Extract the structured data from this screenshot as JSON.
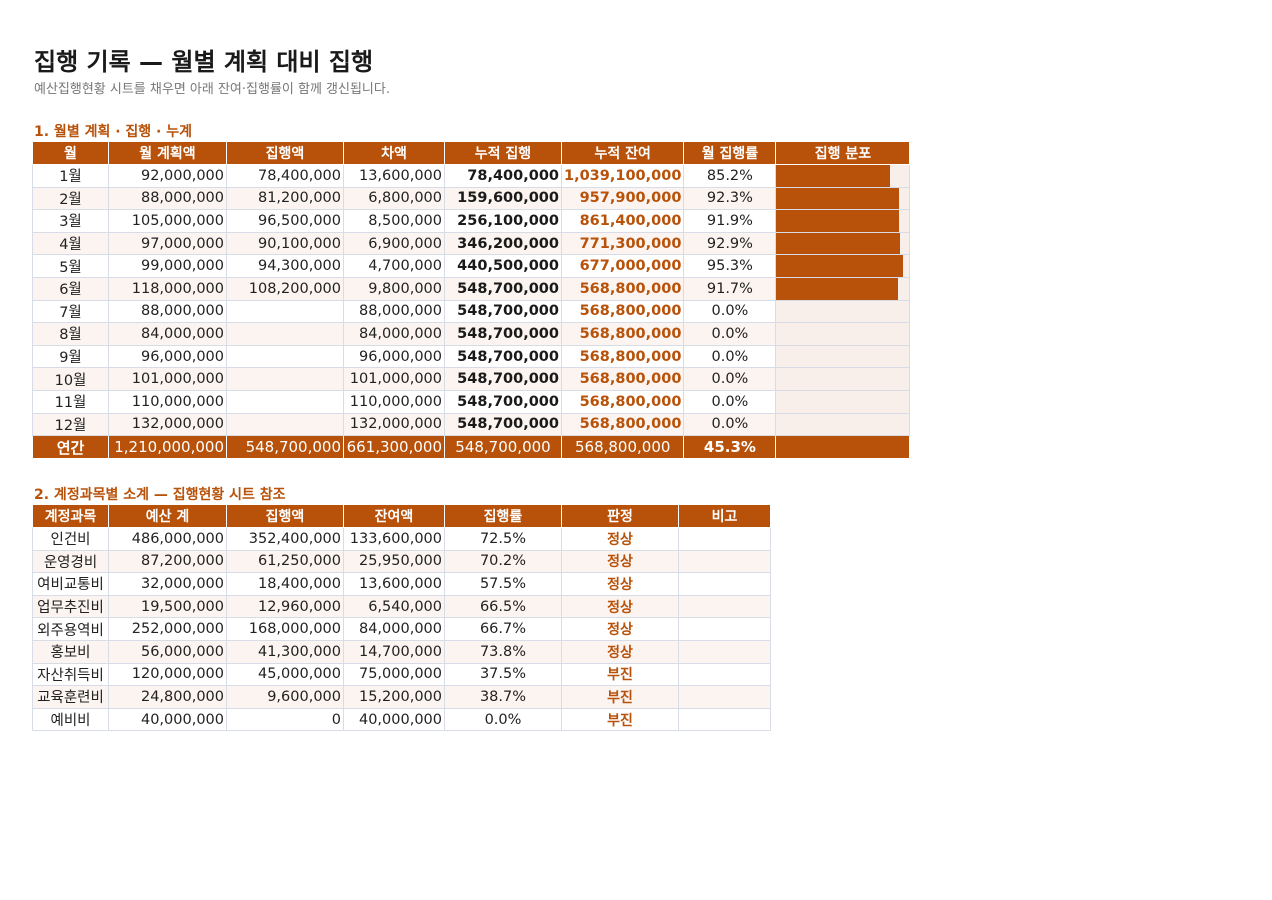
{
  "title": "집행 기록 — 월별 계획 대비 집행",
  "subtitle": "예산집행현황 시트를 채우면 아래 잔여·집행률이 함께 갱신됩니다.",
  "colors": {
    "accent": "#b8520a",
    "zebra": "#fbf4f0",
    "border": "#d8dce6"
  },
  "section1": {
    "title": "1. 월별 계획 · 집행 · 누계",
    "headers": [
      "월",
      "월 계획액",
      "집행액",
      "차액",
      "누적 집행",
      "누적 잔여",
      "월 집행률",
      "집행 분포"
    ],
    "rows": [
      {
        "month": "1월",
        "plan": "92,000,000",
        "exec": "78,400,000",
        "diff": "13,600,000",
        "cum_exec": "78,400,000",
        "cum_rem": "1,039,100,000",
        "rate": "85.2%",
        "rate_value": 0.852
      },
      {
        "month": "2월",
        "plan": "88,000,000",
        "exec": "81,200,000",
        "diff": "6,800,000",
        "cum_exec": "159,600,000",
        "cum_rem": "957,900,000",
        "rate": "92.3%",
        "rate_value": 0.923
      },
      {
        "month": "3월",
        "plan": "105,000,000",
        "exec": "96,500,000",
        "diff": "8,500,000",
        "cum_exec": "256,100,000",
        "cum_rem": "861,400,000",
        "rate": "91.9%",
        "rate_value": 0.919
      },
      {
        "month": "4월",
        "plan": "97,000,000",
        "exec": "90,100,000",
        "diff": "6,900,000",
        "cum_exec": "346,200,000",
        "cum_rem": "771,300,000",
        "rate": "92.9%",
        "rate_value": 0.929
      },
      {
        "month": "5월",
        "plan": "99,000,000",
        "exec": "94,300,000",
        "diff": "4,700,000",
        "cum_exec": "440,500,000",
        "cum_rem": "677,000,000",
        "rate": "95.3%",
        "rate_value": 0.953
      },
      {
        "month": "6월",
        "plan": "118,000,000",
        "exec": "108,200,000",
        "diff": "9,800,000",
        "cum_exec": "548,700,000",
        "cum_rem": "568,800,000",
        "rate": "91.7%",
        "rate_value": 0.917
      },
      {
        "month": "7월",
        "plan": "88,000,000",
        "exec": "",
        "diff": "88,000,000",
        "cum_exec": "548,700,000",
        "cum_rem": "568,800,000",
        "rate": "0.0%",
        "rate_value": 0
      },
      {
        "month": "8월",
        "plan": "84,000,000",
        "exec": "",
        "diff": "84,000,000",
        "cum_exec": "548,700,000",
        "cum_rem": "568,800,000",
        "rate": "0.0%",
        "rate_value": 0
      },
      {
        "month": "9월",
        "plan": "96,000,000",
        "exec": "",
        "diff": "96,000,000",
        "cum_exec": "548,700,000",
        "cum_rem": "568,800,000",
        "rate": "0.0%",
        "rate_value": 0
      },
      {
        "month": "10월",
        "plan": "101,000,000",
        "exec": "",
        "diff": "101,000,000",
        "cum_exec": "548,700,000",
        "cum_rem": "568,800,000",
        "rate": "0.0%",
        "rate_value": 0
      },
      {
        "month": "11월",
        "plan": "110,000,000",
        "exec": "",
        "diff": "110,000,000",
        "cum_exec": "548,700,000",
        "cum_rem": "568,800,000",
        "rate": "0.0%",
        "rate_value": 0
      },
      {
        "month": "12월",
        "plan": "132,000,000",
        "exec": "",
        "diff": "132,000,000",
        "cum_exec": "548,700,000",
        "cum_rem": "568,800,000",
        "rate": "0.0%",
        "rate_value": 0
      }
    ],
    "total": {
      "month": "연간",
      "plan": "1,210,000,000",
      "exec": "548,700,000",
      "diff": "661,300,000",
      "cum_exec": "548,700,000",
      "cum_rem": "568,800,000",
      "rate": "45.3%"
    }
  },
  "section2": {
    "title": "2. 계정과목별 소계 — 집행현황 시트 참조",
    "headers": [
      "계정과목",
      "예산 계",
      "집행액",
      "잔여액",
      "집행률",
      "판정",
      "비고"
    ],
    "rows": [
      {
        "account": "인건비",
        "budget": "486,000,000",
        "exec": "352,400,000",
        "rem": "133,600,000",
        "rate": "72.5%",
        "status": "정상",
        "note": ""
      },
      {
        "account": "운영경비",
        "budget": "87,200,000",
        "exec": "61,250,000",
        "rem": "25,950,000",
        "rate": "70.2%",
        "status": "정상",
        "note": ""
      },
      {
        "account": "여비교통비",
        "budget": "32,000,000",
        "exec": "18,400,000",
        "rem": "13,600,000",
        "rate": "57.5%",
        "status": "정상",
        "note": ""
      },
      {
        "account": "업무추진비",
        "budget": "19,500,000",
        "exec": "12,960,000",
        "rem": "6,540,000",
        "rate": "66.5%",
        "status": "정상",
        "note": ""
      },
      {
        "account": "외주용역비",
        "budget": "252,000,000",
        "exec": "168,000,000",
        "rem": "84,000,000",
        "rate": "66.7%",
        "status": "정상",
        "note": ""
      },
      {
        "account": "홍보비",
        "budget": "56,000,000",
        "exec": "41,300,000",
        "rem": "14,700,000",
        "rate": "73.8%",
        "status": "정상",
        "note": ""
      },
      {
        "account": "자산취득비",
        "budget": "120,000,000",
        "exec": "45,000,000",
        "rem": "75,000,000",
        "rate": "37.5%",
        "status": "부진",
        "note": ""
      },
      {
        "account": "교육훈련비",
        "budget": "24,800,000",
        "exec": "9,600,000",
        "rem": "15,200,000",
        "rate": "38.7%",
        "status": "부진",
        "note": ""
      },
      {
        "account": "예비비",
        "budget": "40,000,000",
        "exec": "0",
        "rem": "40,000,000",
        "rate": "0.0%",
        "status": "부진",
        "note": ""
      }
    ]
  }
}
